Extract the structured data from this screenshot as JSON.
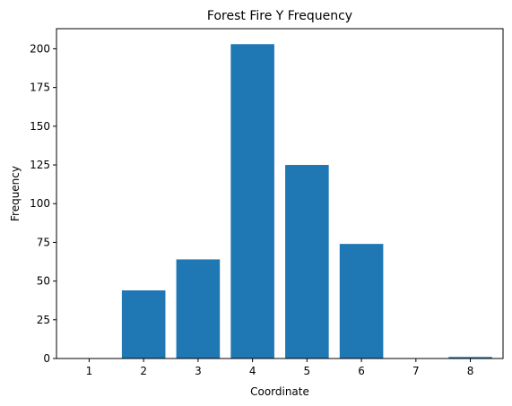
{
  "chart_data": {
    "type": "bar",
    "title": "Forest Fire Y Frequency",
    "xlabel": "Coordinate",
    "ylabel": "Frequency",
    "categories": [
      "1",
      "2",
      "3",
      "4",
      "5",
      "6",
      "7",
      "8"
    ],
    "values": [
      0,
      44,
      64,
      203,
      125,
      74,
      0,
      1
    ],
    "ylim": [
      0,
      213
    ],
    "yticks": [
      0,
      25,
      50,
      75,
      100,
      125,
      150,
      175,
      200
    ],
    "grid": false,
    "bar_color": "#1f77b4"
  }
}
